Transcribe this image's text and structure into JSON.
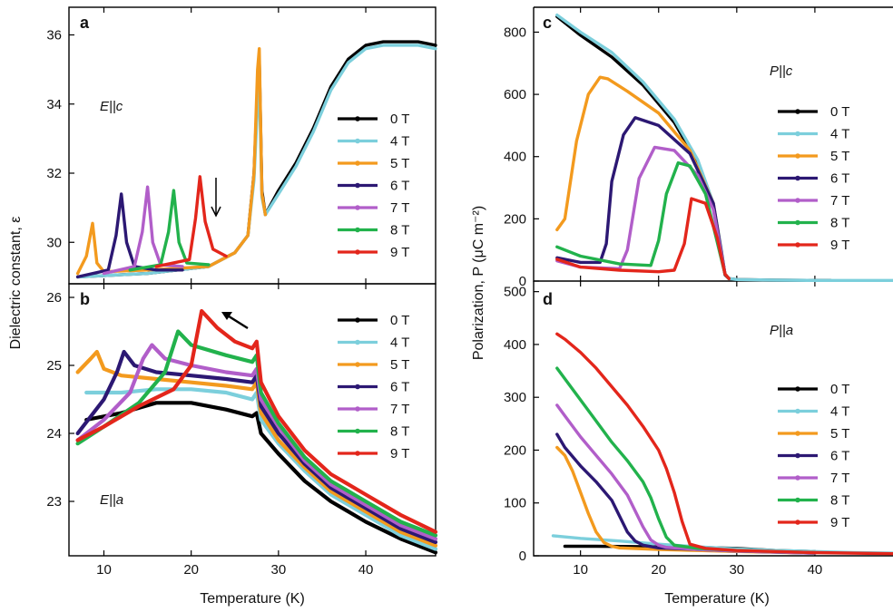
{
  "figure": {
    "xlabel": "Temperature (K)",
    "left_ylabel": "Dielectric constant, ε",
    "right_ylabel": "Polarization, P (μC m⁻²)"
  },
  "colors": {
    "0 T": "#000000",
    "4 T": "#7ccfdc",
    "5 T": "#f39a1e",
    "6 T": "#2c1873",
    "7 T": "#b15ec9",
    "8 T": "#22b24c",
    "9 T": "#e3261b"
  },
  "chart_data": [
    {
      "panel": "a",
      "type": "line",
      "annotation": "E||c",
      "xlim": [
        6,
        48
      ],
      "ylim": [
        28.8,
        36.8
      ],
      "xticks": [
        "10",
        "20",
        "30",
        "40"
      ],
      "yticks": [
        "30",
        "32",
        "34",
        "36"
      ],
      "legend": [
        "0 T",
        "4 T",
        "5 T",
        "6 T",
        "7 T",
        "8 T",
        "9 T"
      ],
      "series": [
        {
          "name": "0 T",
          "x": [
            7,
            15,
            22,
            25,
            26.5,
            27.2,
            27.6,
            27.8,
            28.1,
            28.5,
            30,
            32,
            34,
            36,
            38,
            40,
            42,
            44,
            46,
            48
          ],
          "y": [
            29.0,
            29.1,
            29.3,
            29.7,
            30.2,
            32.0,
            34.5,
            35.3,
            31.5,
            30.8,
            31.5,
            32.3,
            33.3,
            34.5,
            35.3,
            35.7,
            35.8,
            35.8,
            35.8,
            35.7
          ]
        },
        {
          "name": "4 T",
          "x": [
            7,
            15,
            22,
            25,
            26.5,
            27.2,
            27.6,
            27.8,
            28.1,
            28.5,
            30,
            32,
            34,
            36,
            38,
            40,
            42,
            44,
            46,
            48
          ],
          "y": [
            29.0,
            29.1,
            29.3,
            29.7,
            30.2,
            31.8,
            34.0,
            34.6,
            31.3,
            30.8,
            31.4,
            32.2,
            33.2,
            34.4,
            35.2,
            35.6,
            35.7,
            35.7,
            35.7,
            35.6
          ]
        },
        {
          "name": "5 T",
          "x": [
            7,
            8,
            8.7,
            9.2,
            10,
            15,
            22,
            25,
            26.5,
            27.2,
            27.6,
            27.8,
            28.1,
            28.5
          ],
          "y": [
            29.1,
            29.6,
            30.55,
            29.4,
            29.15,
            29.2,
            29.3,
            29.7,
            30.2,
            32.0,
            35.0,
            35.6,
            31.4,
            30.8
          ]
        },
        {
          "name": "6 T",
          "x": [
            7,
            10.5,
            11.4,
            12.0,
            12.6,
            13.5,
            16,
            19
          ],
          "y": [
            29.0,
            29.2,
            30.2,
            31.4,
            30.0,
            29.3,
            29.2,
            29.2
          ]
        },
        {
          "name": "7 T",
          "x": [
            10,
            13.5,
            14.4,
            15.0,
            15.6,
            16.5,
            19
          ],
          "y": [
            29.1,
            29.3,
            30.3,
            31.6,
            30.0,
            29.35,
            29.3
          ]
        },
        {
          "name": "8 T",
          "x": [
            13,
            16.5,
            17.4,
            18.0,
            18.6,
            19.5,
            22
          ],
          "y": [
            29.2,
            29.35,
            30.3,
            31.5,
            30.0,
            29.4,
            29.35
          ]
        },
        {
          "name": "9 T",
          "x": [
            16,
            19.8,
            20.5,
            21.0,
            21.6,
            22.5,
            24
          ],
          "y": [
            29.3,
            29.5,
            30.7,
            31.9,
            30.6,
            29.8,
            29.6
          ]
        }
      ]
    },
    {
      "panel": "b",
      "type": "line",
      "annotation": "E||a",
      "xlim": [
        6,
        48
      ],
      "ylim": [
        22.2,
        26.2
      ],
      "xticks": [
        "10",
        "20",
        "30",
        "40"
      ],
      "yticks": [
        "23",
        "24",
        "25",
        "26"
      ],
      "legend": [
        "0 T",
        "4 T",
        "5 T",
        "6 T",
        "7 T",
        "8 T",
        "9 T"
      ],
      "series": [
        {
          "name": "0 T",
          "x": [
            8,
            12,
            16,
            20,
            24,
            27,
            27.5,
            28,
            30,
            33,
            36,
            40,
            44,
            48
          ],
          "y": [
            24.2,
            24.3,
            24.45,
            24.45,
            24.35,
            24.25,
            24.3,
            24.0,
            23.7,
            23.3,
            23.0,
            22.7,
            22.45,
            22.25
          ]
        },
        {
          "name": "4 T",
          "x": [
            8,
            12,
            16,
            20,
            24,
            27,
            27.5,
            28,
            30,
            33,
            36,
            40,
            44,
            48
          ],
          "y": [
            24.6,
            24.6,
            24.65,
            24.65,
            24.6,
            24.5,
            24.6,
            24.2,
            23.85,
            23.45,
            23.1,
            22.8,
            22.5,
            22.3
          ]
        },
        {
          "name": "5 T",
          "x": [
            7,
            8.5,
            9.2,
            10,
            12,
            16,
            20,
            24,
            27,
            27.5,
            28,
            30,
            33,
            36,
            40,
            44,
            48
          ],
          "y": [
            24.9,
            25.1,
            25.2,
            24.95,
            24.85,
            24.8,
            24.75,
            24.7,
            24.65,
            24.75,
            24.3,
            23.9,
            23.5,
            23.15,
            22.85,
            22.55,
            22.35
          ]
        },
        {
          "name": "6 T",
          "x": [
            7,
            10,
            11.5,
            12.3,
            13.5,
            16,
            20,
            24,
            27,
            27.5,
            28,
            30,
            33,
            36,
            40,
            44,
            48
          ],
          "y": [
            24.0,
            24.5,
            24.9,
            25.2,
            25.0,
            24.9,
            24.85,
            24.8,
            24.75,
            24.85,
            24.4,
            24.0,
            23.55,
            23.2,
            22.9,
            22.6,
            22.4
          ]
        },
        {
          "name": "7 T",
          "x": [
            7,
            10,
            13,
            14.5,
            15.5,
            17,
            20,
            24,
            27,
            27.5,
            28,
            30,
            33,
            36,
            40,
            44,
            48
          ],
          "y": [
            23.9,
            24.2,
            24.6,
            25.1,
            25.3,
            25.1,
            25.0,
            24.9,
            24.85,
            24.95,
            24.5,
            24.1,
            23.6,
            23.25,
            22.95,
            22.65,
            22.45
          ]
        },
        {
          "name": "8 T",
          "x": [
            7,
            10,
            14,
            17,
            18.5,
            20,
            24,
            27,
            27.5,
            28,
            30,
            33,
            36,
            40,
            44,
            48
          ],
          "y": [
            23.85,
            24.1,
            24.45,
            24.9,
            25.5,
            25.3,
            25.15,
            25.05,
            25.15,
            24.6,
            24.15,
            23.65,
            23.3,
            23.0,
            22.7,
            22.5
          ]
        },
        {
          "name": "9 T",
          "x": [
            7,
            10,
            14,
            18,
            20,
            21.2,
            23,
            25,
            27,
            27.5,
            28,
            30,
            33,
            36,
            40,
            44,
            48
          ],
          "y": [
            23.9,
            24.1,
            24.4,
            24.65,
            25.0,
            25.8,
            25.55,
            25.35,
            25.25,
            25.35,
            24.75,
            24.25,
            23.75,
            23.4,
            23.1,
            22.8,
            22.55
          ]
        }
      ]
    },
    {
      "panel": "c",
      "type": "line",
      "annotation": "P||c",
      "xlim": [
        4,
        50
      ],
      "ylim": [
        0,
        880
      ],
      "xticks": [
        "10",
        "20",
        "30",
        "40"
      ],
      "yticks": [
        "0",
        "200",
        "400",
        "600",
        "800"
      ],
      "legend": [
        "0 T",
        "4 T",
        "5 T",
        "6 T",
        "7 T",
        "8 T",
        "9 T"
      ],
      "series": [
        {
          "name": "0 T",
          "x": [
            7,
            10,
            14,
            18,
            22,
            25,
            27,
            28,
            28.5,
            29,
            30,
            35,
            42
          ],
          "y": [
            850,
            790,
            720,
            630,
            510,
            380,
            240,
            100,
            20,
            8,
            5,
            3,
            2
          ]
        },
        {
          "name": "4 T",
          "x": [
            7,
            10,
            14,
            18,
            22,
            25,
            27,
            28,
            28.5,
            29,
            30,
            35,
            40,
            45,
            50
          ],
          "y": [
            855,
            800,
            735,
            640,
            520,
            390,
            250,
            105,
            22,
            8,
            5,
            3,
            2,
            2,
            2
          ]
        },
        {
          "name": "5 T",
          "x": [
            7,
            8,
            9.5,
            11,
            12.5,
            13.5,
            16,
            20,
            24,
            27,
            28.5,
            29
          ],
          "y": [
            165,
            200,
            450,
            600,
            655,
            650,
            610,
            540,
            420,
            250,
            22,
            8
          ]
        },
        {
          "name": "6 T",
          "x": [
            7,
            10,
            12.5,
            13.3,
            14,
            15.5,
            17,
            20,
            24,
            27,
            28.5,
            29
          ],
          "y": [
            75,
            60,
            60,
            120,
            320,
            470,
            525,
            500,
            410,
            250,
            22,
            8
          ]
        },
        {
          "name": "7 T",
          "x": [
            7,
            10,
            15,
            16,
            17.5,
            19.5,
            22,
            25,
            27,
            28.5,
            29
          ],
          "y": [
            65,
            45,
            40,
            100,
            330,
            430,
            420,
            340,
            230,
            22,
            8
          ]
        },
        {
          "name": "8 T",
          "x": [
            7,
            10,
            15,
            19,
            20,
            21,
            22.5,
            24,
            26,
            28.5,
            29
          ],
          "y": [
            110,
            80,
            55,
            50,
            130,
            280,
            380,
            370,
            280,
            22,
            8
          ]
        },
        {
          "name": "9 T",
          "x": [
            7,
            10,
            15,
            20,
            22,
            23.3,
            24.2,
            26,
            27.5,
            28.5,
            29
          ],
          "y": [
            70,
            45,
            35,
            30,
            35,
            120,
            265,
            250,
            140,
            22,
            8
          ]
        }
      ]
    },
    {
      "panel": "d",
      "type": "line",
      "annotation": "P||a",
      "xlim": [
        4,
        50
      ],
      "ylim": [
        0,
        520
      ],
      "xticks": [
        "10",
        "20",
        "30",
        "40"
      ],
      "yticks": [
        "0",
        "100",
        "200",
        "300",
        "400",
        "500"
      ],
      "legend": [
        "0 T",
        "4 T",
        "5 T",
        "6 T",
        "7 T",
        "8 T",
        "9 T"
      ],
      "series": [
        {
          "name": "0 T",
          "x": [
            8,
            12,
            20,
            25,
            30,
            35,
            40
          ],
          "y": [
            18,
            18,
            17,
            16,
            14,
            10,
            8
          ]
        },
        {
          "name": "4 T",
          "x": [
            6.5,
            10,
            15,
            20,
            25,
            30,
            35,
            40,
            45,
            50
          ],
          "y": [
            38,
            33,
            28,
            22,
            17,
            13,
            10,
            8,
            6,
            5
          ]
        },
        {
          "name": "5 T",
          "x": [
            7,
            8,
            9,
            10,
            11,
            12,
            13,
            14,
            15,
            20,
            25,
            30,
            40
          ],
          "y": [
            205,
            190,
            160,
            120,
            80,
            45,
            25,
            18,
            15,
            12,
            10,
            8,
            5
          ]
        },
        {
          "name": "6 T",
          "x": [
            7,
            8,
            10,
            12,
            14,
            15,
            16,
            17,
            18,
            20,
            25,
            30,
            40
          ],
          "y": [
            230,
            205,
            170,
            140,
            105,
            75,
            45,
            28,
            20,
            15,
            12,
            9,
            5
          ]
        },
        {
          "name": "7 T",
          "x": [
            7,
            8,
            10,
            12,
            14,
            16,
            17,
            18,
            19,
            20,
            21,
            25,
            30,
            40
          ],
          "y": [
            285,
            265,
            225,
            190,
            155,
            115,
            85,
            55,
            30,
            20,
            16,
            12,
            9,
            5
          ]
        },
        {
          "name": "8 T",
          "x": [
            7,
            8,
            10,
            12,
            14,
            16,
            18,
            19,
            20,
            21,
            22,
            25,
            30,
            40
          ],
          "y": [
            355,
            335,
            295,
            255,
            215,
            180,
            140,
            110,
            70,
            35,
            20,
            14,
            10,
            6
          ]
        },
        {
          "name": "9 T",
          "x": [
            7,
            8,
            10,
            12,
            14,
            16,
            18,
            20,
            21,
            22,
            23,
            24,
            26,
            30,
            40,
            50
          ],
          "y": [
            420,
            410,
            385,
            355,
            320,
            285,
            245,
            200,
            165,
            120,
            65,
            22,
            14,
            10,
            6,
            4
          ]
        }
      ]
    }
  ]
}
